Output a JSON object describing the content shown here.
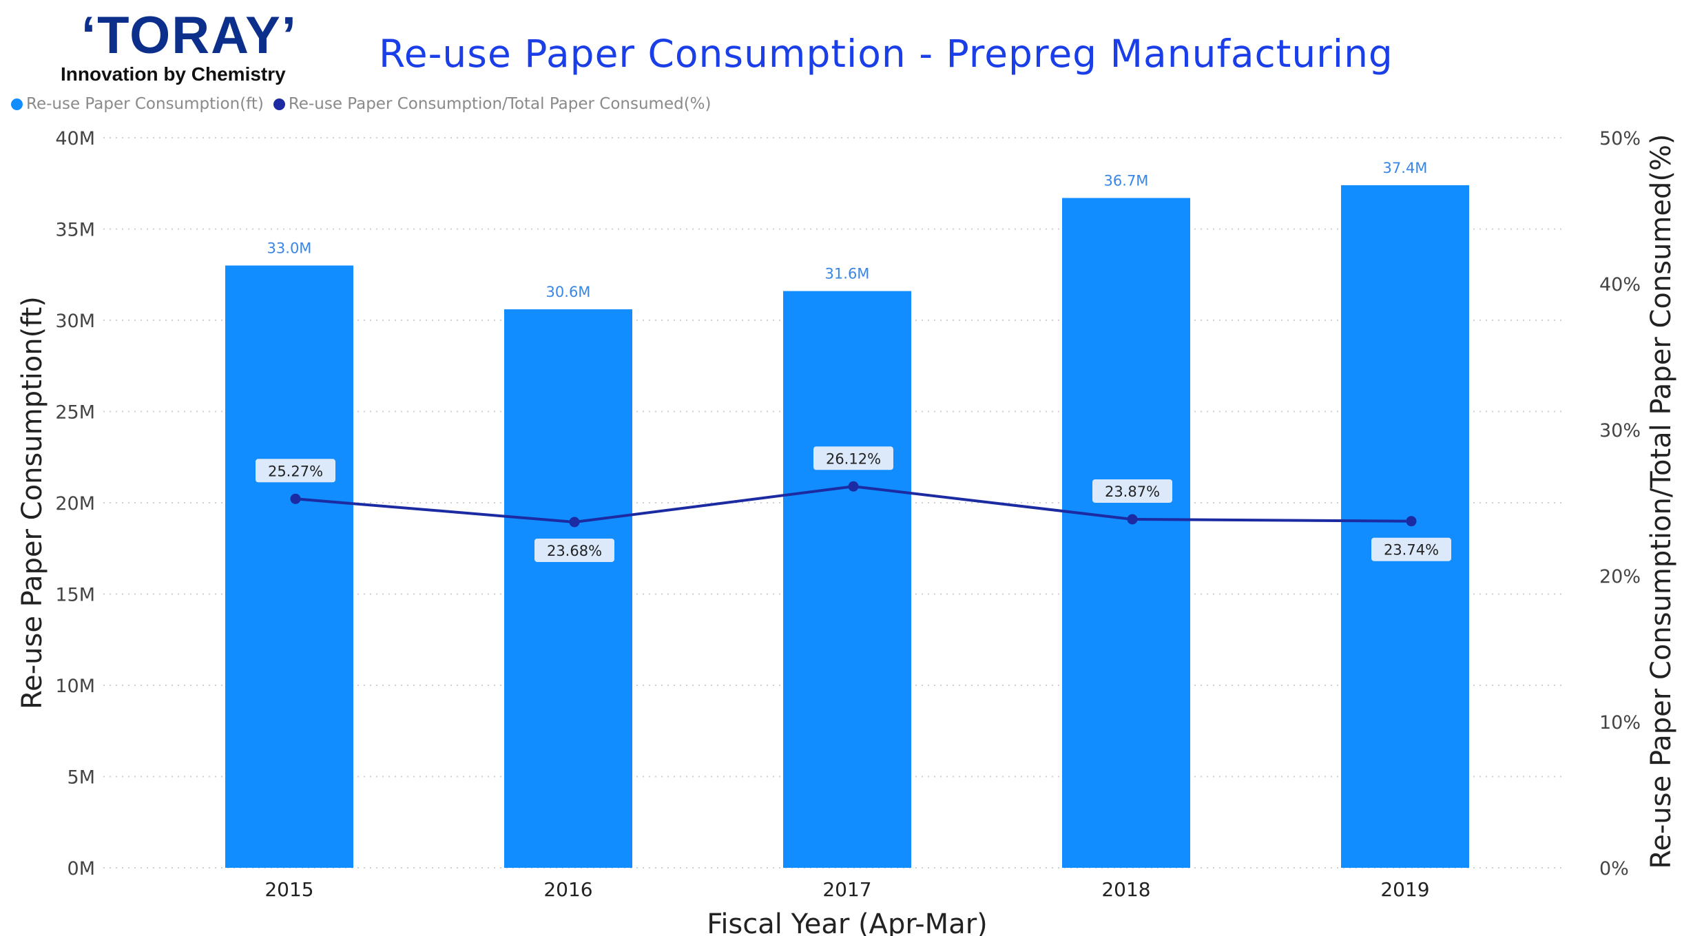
{
  "logo": {
    "brand": "‘TORAY’",
    "tagline": "Innovation by Chemistry"
  },
  "chart_data": {
    "type": "bar",
    "title": "Re-use Paper Consumption - Prepreg Manufacturing",
    "xlabel": "Fiscal Year (Apr-Mar)",
    "ylabel": "Re-use Paper Consumption(ft)",
    "y2label": "Re-use Paper Consumption/Total Paper Consumed(%)",
    "categories": [
      "2015",
      "2016",
      "2017",
      "2018",
      "2019"
    ],
    "ylim": [
      0,
      40
    ],
    "y2lim": [
      0,
      50
    ],
    "yticks": [
      "0M",
      "5M",
      "10M",
      "15M",
      "20M",
      "25M",
      "30M",
      "35M",
      "40M"
    ],
    "y2ticks": [
      "0%",
      "10%",
      "20%",
      "30%",
      "40%",
      "50%"
    ],
    "grid": true,
    "legend_position": "top-left",
    "series": [
      {
        "name": "Re-use Paper Consumption(ft)",
        "type": "bar",
        "axis": "left",
        "color": "#118dff",
        "values": [
          33.0,
          30.6,
          31.6,
          36.7,
          37.4
        ],
        "labels": [
          "33.0M",
          "30.6M",
          "31.6M",
          "36.7M",
          "37.4M"
        ]
      },
      {
        "name": "Re-use Paper Consumption/Total Paper Consumed(%)",
        "type": "line",
        "axis": "right",
        "color": "#1c2ba1",
        "values": [
          25.27,
          23.68,
          26.12,
          23.87,
          23.74
        ],
        "labels": [
          "25.27%",
          "23.68%",
          "26.12%",
          "23.87%",
          "23.74%"
        ],
        "label_side": [
          "above",
          "below",
          "above",
          "above",
          "below"
        ]
      }
    ]
  }
}
